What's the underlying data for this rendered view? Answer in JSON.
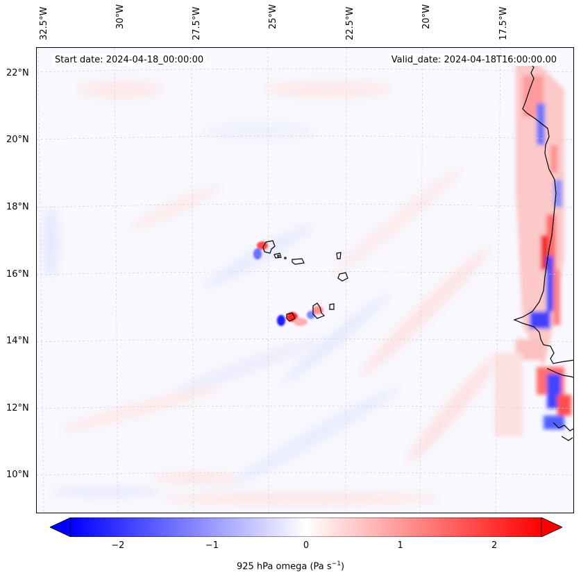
{
  "map": {
    "start_date_text": "Start date: 2024-04-18_00:00:00",
    "valid_date_text": "Valid_date: 2024-04-18T16:00:00.00",
    "longitude_labels": [
      "32.5°W",
      "30°W",
      "27.5°W",
      "25°W",
      "22.5°W",
      "20°W",
      "17.5°W"
    ],
    "latitude_labels": [
      "22°N",
      "20°N",
      "18°N",
      "16°N",
      "14°N",
      "12°N",
      "10°N"
    ],
    "field_variable": "925 hPa omega",
    "gridlines": true,
    "extent": {
      "lon_min": -32.8,
      "lon_max": -15.1,
      "lat_min": 8.9,
      "lat_max": 22.8
    }
  },
  "colorbar": {
    "label_prefix": "925 hPa omega (Pa s",
    "label_exponent": "−1",
    "label_suffix": ")",
    "tick_labels": [
      "−2",
      "−1",
      "0",
      "1",
      "2"
    ],
    "tick_values": [
      -2,
      -1,
      0,
      1,
      2
    ],
    "range": [
      -2.5,
      2.5
    ],
    "extend": "both",
    "cmap": "bwr",
    "colors": {
      "min": "#0000ff",
      "mid": "#ffffff",
      "max": "#ff0000"
    }
  }
}
